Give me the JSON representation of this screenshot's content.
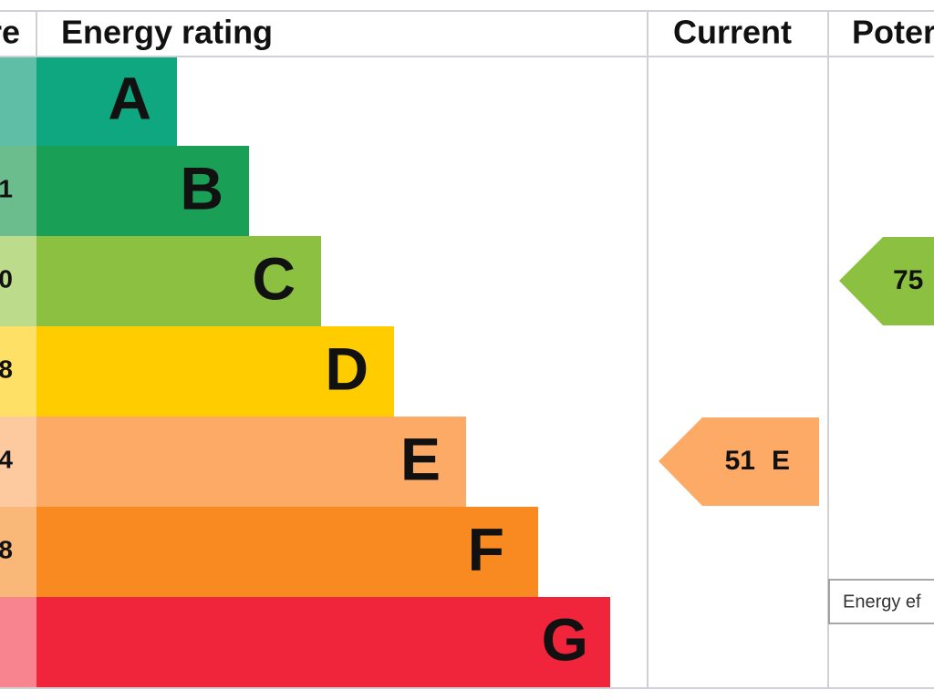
{
  "header": {
    "score": "re",
    "rating": "Energy rating",
    "current": "Current",
    "potential": "Poter"
  },
  "bands": [
    {
      "letter": "A"
    },
    {
      "score": "1",
      "letter": "B"
    },
    {
      "score": "0",
      "letter": "C"
    },
    {
      "score": "8",
      "letter": "D"
    },
    {
      "score": "4",
      "letter": "E"
    },
    {
      "score": "8",
      "letter": "F"
    },
    {
      "letter": "G"
    }
  ],
  "current": {
    "score": "51",
    "band": "E"
  },
  "potential": {
    "score": "75"
  },
  "tooltip": "Energy ef"
}
